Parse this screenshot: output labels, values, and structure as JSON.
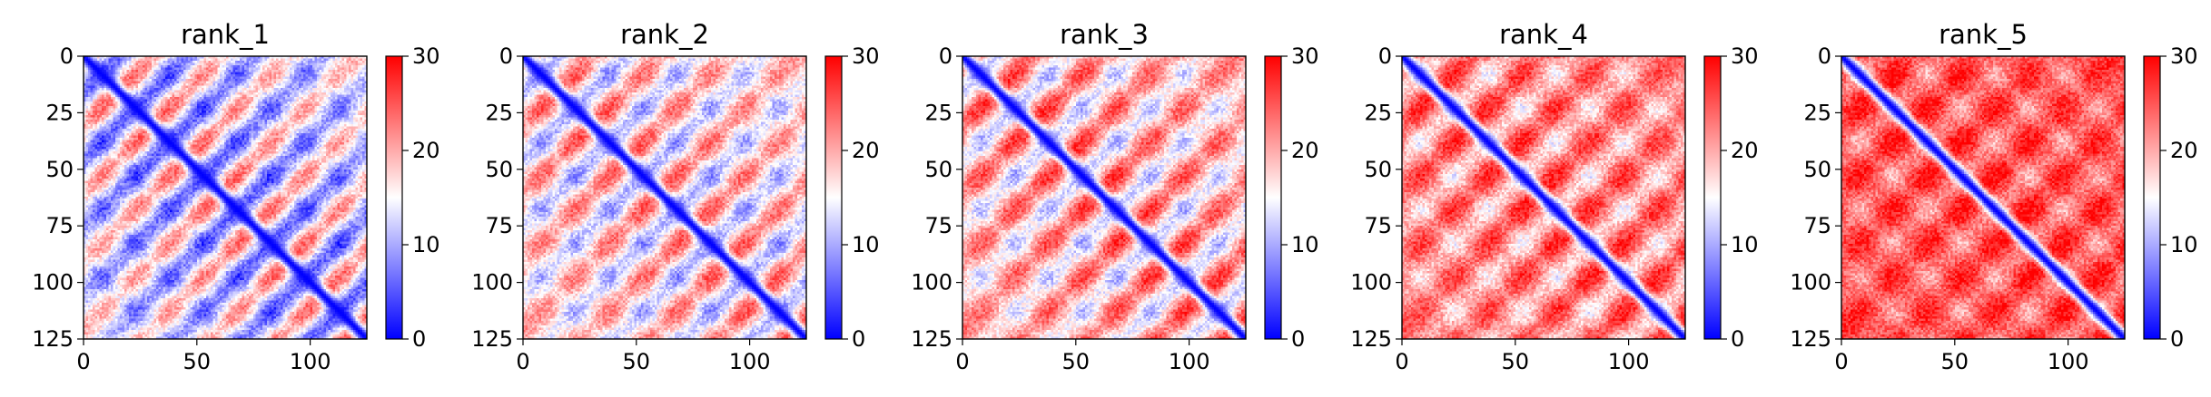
{
  "chart_data": [
    {
      "type": "heatmap",
      "title": "rank_1",
      "xlim": [
        0,
        125
      ],
      "ylim": [
        125,
        0
      ],
      "xticks": [
        0,
        50,
        100
      ],
      "yticks": [
        0,
        25,
        50,
        75,
        100,
        125
      ],
      "colorbar": {
        "ticks": [
          0,
          10,
          20,
          30
        ],
        "range": [
          0,
          30
        ],
        "colormap": "bwr"
      },
      "matrix_size": 125,
      "pattern": {
        "diagonal_value": 0,
        "background_value": 15,
        "periodic_amplitude": 10,
        "period": 30,
        "off_diagonal_bands": [
          30,
          60,
          90
        ]
      }
    },
    {
      "type": "heatmap",
      "title": "rank_2",
      "xlim": [
        0,
        125
      ],
      "ylim": [
        125,
        0
      ],
      "xticks": [
        0,
        50,
        100
      ],
      "yticks": [
        0,
        25,
        50,
        75,
        100,
        125
      ],
      "colorbar": {
        "ticks": [
          0,
          10,
          20,
          30
        ],
        "range": [
          0,
          30
        ],
        "colormap": "bwr"
      },
      "matrix_size": 125,
      "pattern": {
        "diagonal_value": 0,
        "background_value": 18,
        "periodic_amplitude": 8,
        "period": 30,
        "off_diagonal_bands": [
          30,
          60,
          90
        ]
      }
    },
    {
      "type": "heatmap",
      "title": "rank_3",
      "xlim": [
        0,
        125
      ],
      "ylim": [
        125,
        0
      ],
      "xticks": [
        0,
        50,
        100
      ],
      "yticks": [
        0,
        25,
        50,
        75,
        100,
        125
      ],
      "colorbar": {
        "ticks": [
          0,
          10,
          20,
          30
        ],
        "range": [
          0,
          30
        ],
        "colormap": "bwr"
      },
      "matrix_size": 125,
      "pattern": {
        "diagonal_value": 0,
        "background_value": 20,
        "periodic_amplitude": 8,
        "period": 30,
        "off_diagonal_bands": [
          30,
          60,
          90
        ]
      }
    },
    {
      "type": "heatmap",
      "title": "rank_4",
      "xlim": [
        0,
        125
      ],
      "ylim": [
        125,
        0
      ],
      "xticks": [
        0,
        50,
        100
      ],
      "yticks": [
        0,
        25,
        50,
        75,
        100,
        125
      ],
      "colorbar": {
        "ticks": [
          0,
          10,
          20,
          30
        ],
        "range": [
          0,
          30
        ],
        "colormap": "bwr"
      },
      "matrix_size": 125,
      "pattern": {
        "diagonal_value": 0,
        "background_value": 23,
        "periodic_amplitude": 6,
        "period": 30,
        "off_diagonal_bands": [
          30,
          60,
          90
        ]
      }
    },
    {
      "type": "heatmap",
      "title": "rank_5",
      "xlim": [
        0,
        125
      ],
      "ylim": [
        125,
        0
      ],
      "xticks": [
        0,
        50,
        100
      ],
      "yticks": [
        0,
        25,
        50,
        75,
        100,
        125
      ],
      "colorbar": {
        "ticks": [
          0,
          10,
          20,
          30
        ],
        "range": [
          0,
          30
        ],
        "colormap": "bwr"
      },
      "matrix_size": 125,
      "pattern": {
        "diagonal_value": 0,
        "background_value": 26,
        "periodic_amplitude": 4,
        "period": 30,
        "off_diagonal_bands": [
          30,
          60,
          90
        ]
      }
    }
  ]
}
